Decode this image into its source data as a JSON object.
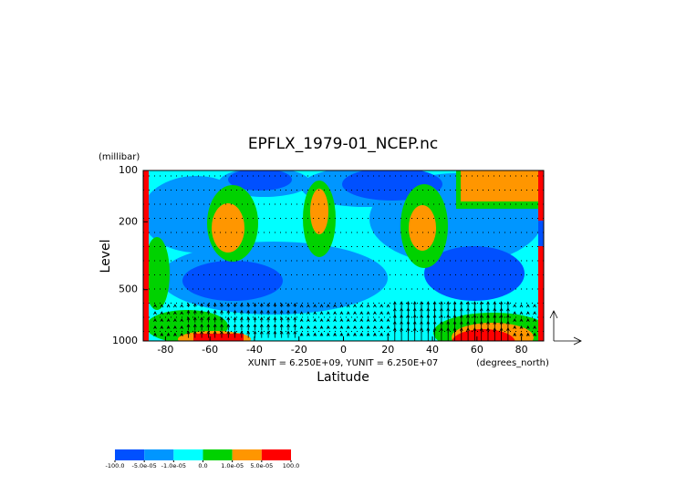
{
  "chart_data": {
    "type": "contour",
    "title": "EPFLX_1979-01_NCEP.nc",
    "x_label": "Latitude",
    "x_unit": "(degrees_north)",
    "y_label": "Level",
    "y_unit": "(millibar)",
    "vector_note": "XUNIT = 6.250E+09, YUNIT = 6.250E+07",
    "xlim": [
      -90,
      90
    ],
    "xticks": [
      -80,
      -60,
      -40,
      -20,
      0,
      20,
      40,
      60,
      80
    ],
    "ylim": [
      1000,
      100
    ],
    "yticks": [
      100,
      200,
      500,
      1000
    ],
    "log_y": true,
    "colorbar": {
      "levels": [
        {
          "value": -100,
          "label": "-100.0"
        },
        {
          "value": -5e-05,
          "label": "-5.0e-05"
        },
        {
          "value": -1e-05,
          "label": "-1.0e-05"
        },
        {
          "value": 0,
          "label": "0.0"
        },
        {
          "value": 1e-05,
          "label": "1.0e-05"
        },
        {
          "value": 5e-05,
          "label": "5.0e-05"
        },
        {
          "value": 100,
          "label": "100.0"
        }
      ],
      "colors": [
        "#0050ff",
        "#0096ff",
        "#00ffff",
        "#00d200",
        "#ff9600",
        "#ff0000"
      ]
    }
  }
}
